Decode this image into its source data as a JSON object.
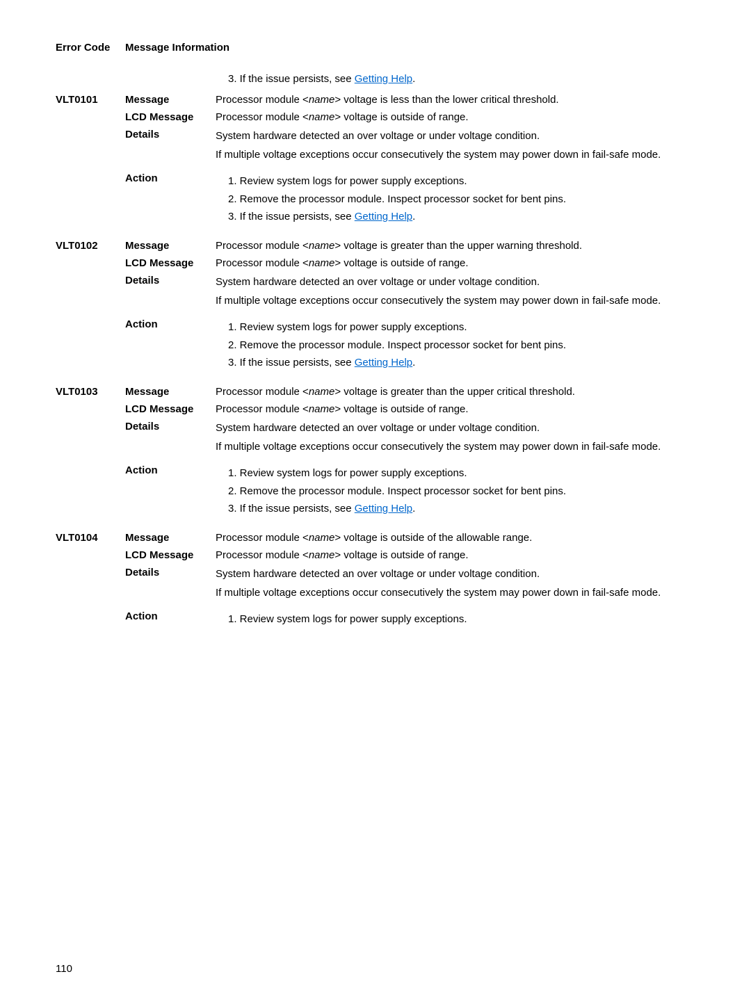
{
  "header": {
    "col1": "Error Code",
    "col2": "Message Information"
  },
  "lead_action_item": "3. If the issue persists, see ",
  "link_text": "Getting Help",
  "period": ".",
  "labels": {
    "message": "Message",
    "lcd": "LCD Message",
    "details": "Details",
    "action": "Action"
  },
  "common": {
    "lcd_text_pre": "Processor module <",
    "lcd_text_post": "> voltage is outside of range.",
    "name_italic": "name",
    "details1": "System hardware detected an over voltage or under voltage condition.",
    "details2": "If multiple voltage exceptions occur consecutively the system may power down in fail-safe mode.",
    "a1": "1. Review system logs for power supply exceptions.",
    "a2": "2. Remove the processor module. Inspect processor socket for bent pins.",
    "a3_pre": "3. If the issue persists, see "
  },
  "entries": {
    "e1": {
      "code": "VLT0101",
      "msg_pre": "Processor module <",
      "msg_post": "> voltage is less than the lower critical threshold."
    },
    "e2": {
      "code": "VLT0102",
      "msg_pre": "Processor module <",
      "msg_post": "> voltage is greater than the upper warning threshold."
    },
    "e3": {
      "code": "VLT0103",
      "msg_pre": "Processor module <",
      "msg_post": "> voltage is greater than the upper critical threshold."
    },
    "e4": {
      "code": "VLT0104",
      "msg_pre": "Processor module <",
      "msg_post": "> voltage is outside of the allowable range."
    }
  },
  "pagenum": "110"
}
